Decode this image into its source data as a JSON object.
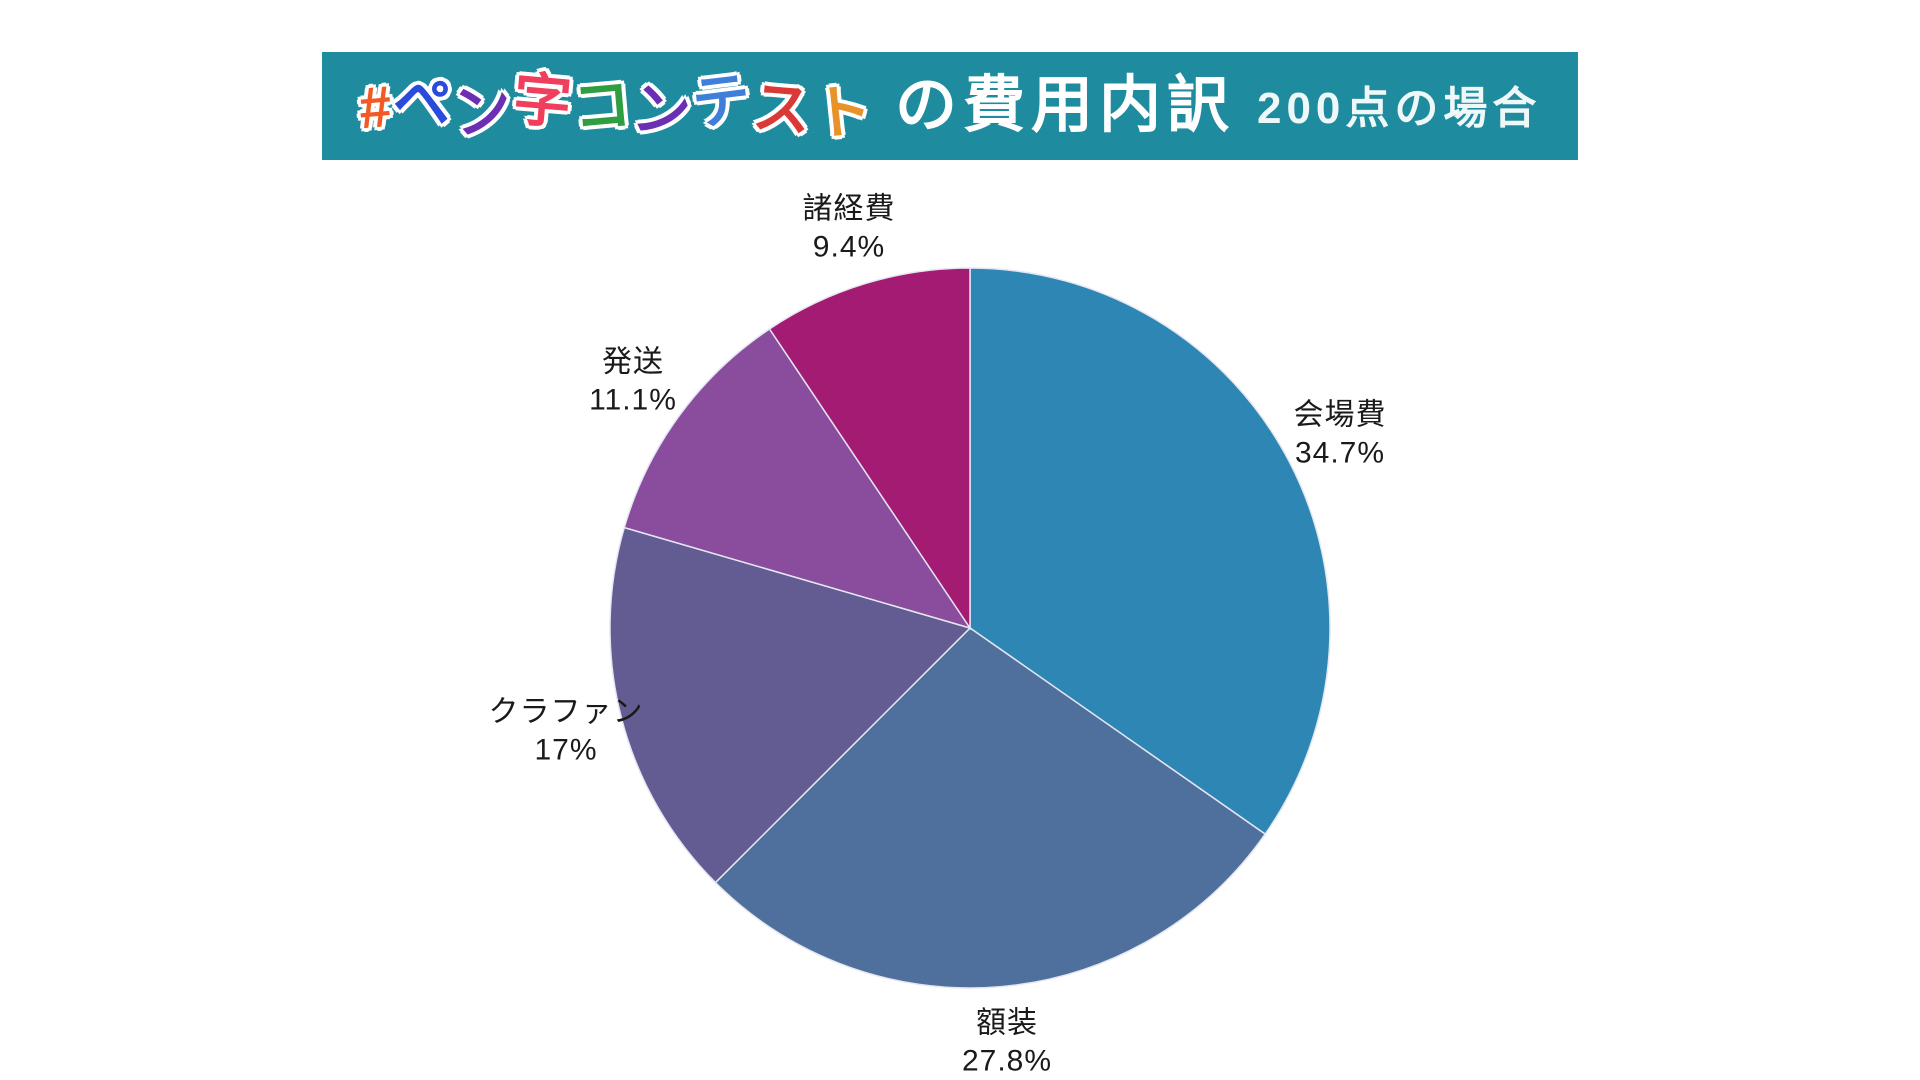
{
  "page": {
    "background_color": "#ffffff"
  },
  "banner": {
    "bg_color": "#1e8c9e",
    "text_color": "#ffffff",
    "logo_text": "#ペン字コンテスト",
    "logo_chars": [
      {
        "ch": "#",
        "color": "#f15a24"
      },
      {
        "ch": "ペ",
        "color": "#2b4bdc"
      },
      {
        "ch": "ン",
        "color": "#6b2fb3"
      },
      {
        "ch": "字",
        "color": "#ef3f5d"
      },
      {
        "ch": "コ",
        "color": "#2f9e41"
      },
      {
        "ch": "ン",
        "color": "#6b2fb3"
      },
      {
        "ch": "テ",
        "color": "#3f7fd9"
      },
      {
        "ch": "ス",
        "color": "#d93a35"
      },
      {
        "ch": "ト",
        "color": "#e8922a"
      }
    ],
    "title_suffix": "の費用内訳",
    "subtitle": "200点の場合"
  },
  "chart_data": {
    "type": "pie",
    "title": "#ペン字コンテストの費用内訳 200点の場合",
    "start_angle_deg": 0,
    "direction": "clockwise",
    "legend": "none",
    "labels_outside": true,
    "label_color": "#1a1a1a",
    "slice_stroke": "#e4e6f2",
    "slices": [
      {
        "label": "会場費",
        "value": 34.7,
        "display_pct": "34.7%",
        "color": "#2e86b4"
      },
      {
        "label": "額装",
        "value": 27.8,
        "display_pct": "27.8%",
        "color": "#4f709c"
      },
      {
        "label": "クラファン",
        "value": 17,
        "display_pct": "17%",
        "color": "#635c92"
      },
      {
        "label": "発送",
        "value": 11.1,
        "display_pct": "11.1%",
        "color": "#8a4c9c"
      },
      {
        "label": "諸経費",
        "value": 9.4,
        "display_pct": "9.4%",
        "color": "#a31b72"
      }
    ]
  }
}
